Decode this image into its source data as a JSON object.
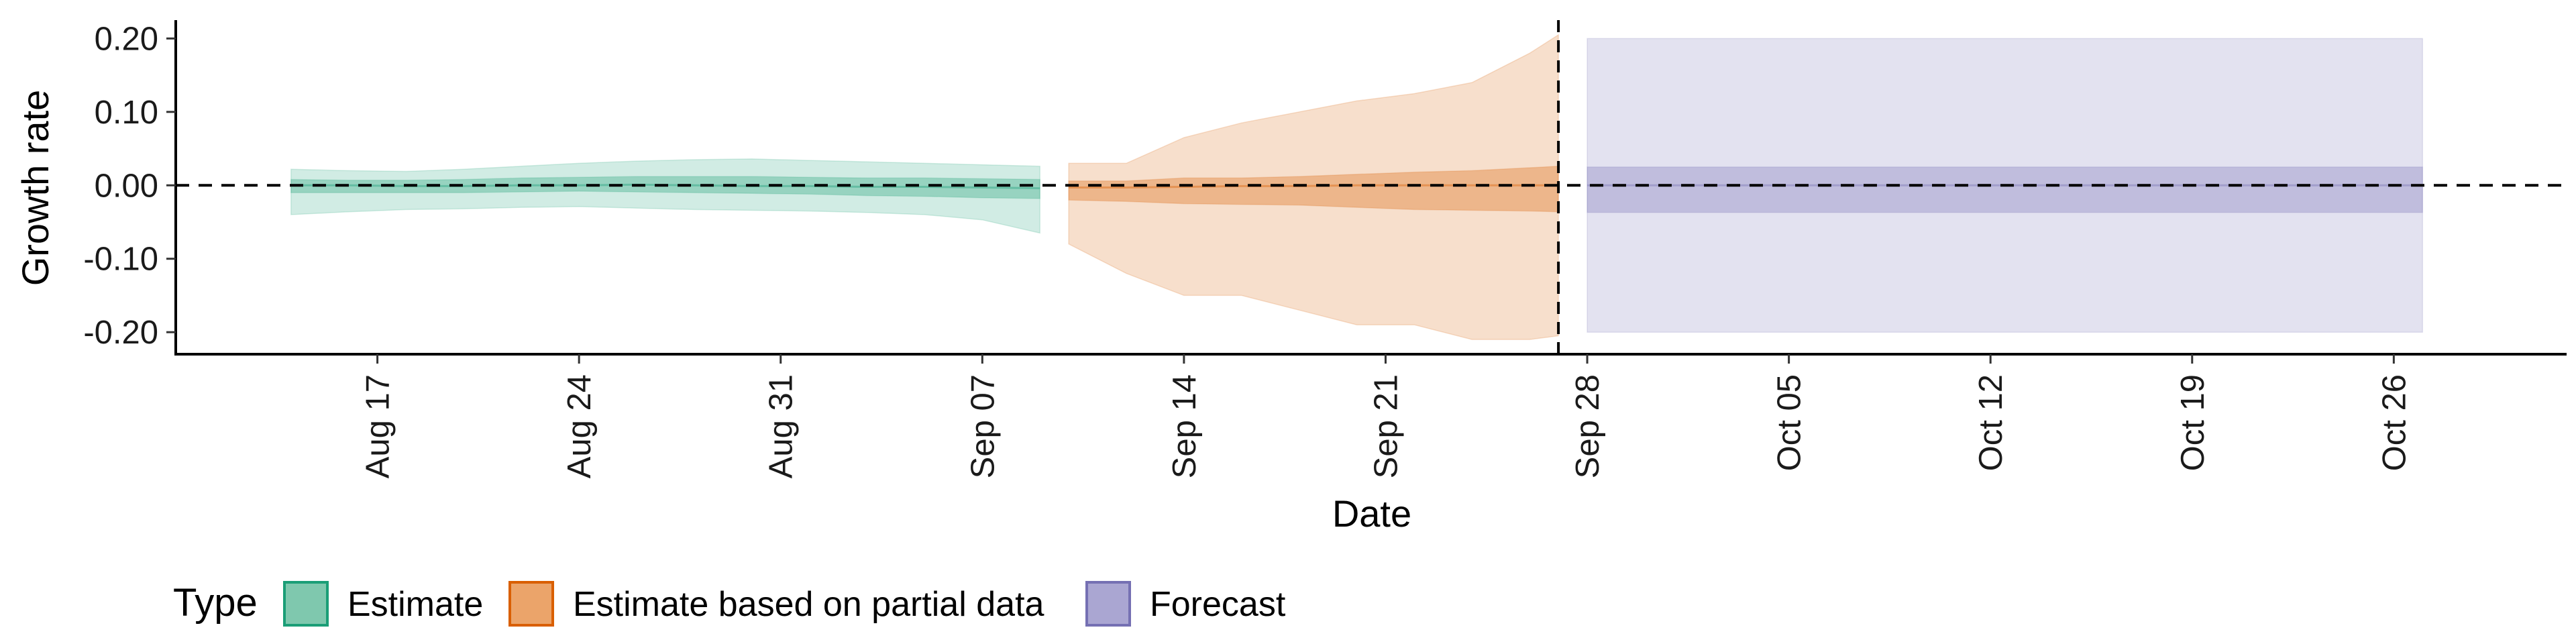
{
  "chart_data": {
    "type": "area",
    "xlabel": "Date",
    "ylabel": "Growth rate",
    "x_range": [
      "2020-08-10",
      "2020-11-01"
    ],
    "ylim": [
      -0.23,
      0.225
    ],
    "yticks": [
      0.2,
      0.1,
      0.0,
      -0.1,
      -0.2
    ],
    "ytick_labels": [
      "0.20",
      "0.10",
      "0.00",
      "-0.10",
      "-0.20"
    ],
    "xticks": [
      "2020-08-17",
      "2020-08-24",
      "2020-08-31",
      "2020-09-07",
      "2020-09-14",
      "2020-09-21",
      "2020-09-28",
      "2020-10-05",
      "2020-10-12",
      "2020-10-19",
      "2020-10-26"
    ],
    "xtick_labels": [
      "Aug 17",
      "Aug 24",
      "Aug 31",
      "Sep 07",
      "Sep 14",
      "Sep 21",
      "Sep 28",
      "Oct 05",
      "Oct 12",
      "Oct 19",
      "Oct 26"
    ],
    "reference_hline": 0,
    "reference_vline": "2020-09-27",
    "grid": false,
    "legend": {
      "title": "Type",
      "position": "bottom-left",
      "items": [
        {
          "label": "Estimate",
          "fill": "#7fc8ae",
          "stroke": "#1b9e77"
        },
        {
          "label": "Estimate based on partial data",
          "fill": "#eba46a",
          "stroke": "#d95f02"
        },
        {
          "label": "Forecast",
          "fill": "#aaa6d2",
          "stroke": "#7570b3"
        }
      ]
    },
    "series": [
      {
        "name": "Estimate",
        "color": "#1b9e77",
        "x": [
          "2020-08-14",
          "2020-08-16",
          "2020-08-18",
          "2020-08-20",
          "2020-08-22",
          "2020-08-24",
          "2020-08-26",
          "2020-08-28",
          "2020-08-30",
          "2020-09-01",
          "2020-09-03",
          "2020-09-05",
          "2020-09-07",
          "2020-09-09"
        ],
        "outer_upper": [
          0.022,
          0.02,
          0.019,
          0.022,
          0.026,
          0.03,
          0.033,
          0.035,
          0.036,
          0.034,
          0.032,
          0.03,
          0.028,
          0.026
        ],
        "inner_upper": [
          0.008,
          0.007,
          0.007,
          0.008,
          0.01,
          0.011,
          0.012,
          0.012,
          0.012,
          0.011,
          0.01,
          0.01,
          0.009,
          0.008
        ],
        "median": [
          0.0,
          0.0,
          -0.001,
          -0.001,
          0.0,
          0.0,
          0.001,
          0.0,
          -0.001,
          -0.001,
          -0.002,
          -0.002,
          -0.003,
          -0.004
        ],
        "inner_lower": [
          -0.01,
          -0.01,
          -0.01,
          -0.01,
          -0.009,
          -0.008,
          -0.009,
          -0.01,
          -0.011,
          -0.012,
          -0.014,
          -0.015,
          -0.017,
          -0.018
        ],
        "outer_lower": [
          -0.04,
          -0.036,
          -0.033,
          -0.032,
          -0.03,
          -0.029,
          -0.031,
          -0.033,
          -0.034,
          -0.035,
          -0.037,
          -0.04,
          -0.047,
          -0.065
        ]
      },
      {
        "name": "Estimate based on partial data",
        "color": "#d95f02",
        "x": [
          "2020-09-10",
          "2020-09-12",
          "2020-09-14",
          "2020-09-16",
          "2020-09-18",
          "2020-09-20",
          "2020-09-22",
          "2020-09-24",
          "2020-09-26",
          "2020-09-27"
        ],
        "outer_upper": [
          0.03,
          0.03,
          0.065,
          0.085,
          0.1,
          0.115,
          0.125,
          0.14,
          0.18,
          0.205
        ],
        "inner_upper": [
          0.006,
          0.006,
          0.01,
          0.01,
          0.012,
          0.015,
          0.018,
          0.02,
          0.024,
          0.026
        ],
        "median": [
          -0.003,
          -0.003,
          -0.002,
          -0.001,
          -0.001,
          0.0,
          0.0,
          0.0,
          0.0,
          0.0
        ],
        "inner_lower": [
          -0.02,
          -0.022,
          -0.025,
          -0.026,
          -0.027,
          -0.03,
          -0.033,
          -0.034,
          -0.035,
          -0.036
        ],
        "outer_lower": [
          -0.08,
          -0.12,
          -0.15,
          -0.15,
          -0.17,
          -0.19,
          -0.19,
          -0.21,
          -0.21,
          -0.205
        ]
      },
      {
        "name": "Forecast",
        "color": "#7570b3",
        "x": [
          "2020-09-28",
          "2020-10-27"
        ],
        "outer_upper": [
          0.2,
          0.2
        ],
        "inner_upper": [
          0.025,
          0.025
        ],
        "median": [
          0.0,
          0.0
        ],
        "inner_lower": [
          -0.037,
          -0.037
        ],
        "outer_lower": [
          -0.2,
          -0.2
        ]
      }
    ]
  }
}
